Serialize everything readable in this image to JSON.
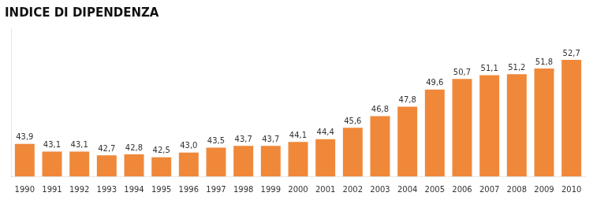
{
  "chart_data": {
    "type": "bar",
    "title": "INDICE DI DIPENDENZA",
    "categories": [
      1990,
      1991,
      1992,
      1993,
      1994,
      1995,
      1996,
      1997,
      1998,
      1999,
      2000,
      2001,
      2002,
      2003,
      2004,
      2005,
      2006,
      2007,
      2008,
      2009,
      2010
    ],
    "values": [
      43.9,
      43.1,
      43.1,
      42.7,
      42.8,
      42.5,
      43.0,
      43.5,
      43.7,
      43.7,
      44.1,
      44.4,
      45.6,
      46.8,
      47.8,
      49.6,
      50.7,
      51.1,
      51.2,
      51.8,
      52.7
    ],
    "value_labels": [
      "43,9",
      "43,1",
      "43,1",
      "42,7",
      "42,8",
      "42,5",
      "43,0",
      "43,5",
      "43,7",
      "43,7",
      "44,1",
      "44,4",
      "45,6",
      "46,8",
      "47,8",
      "49,6",
      "50,7",
      "51,1",
      "51,2",
      "51,8",
      "52,7"
    ],
    "color": "#F0883A",
    "ylim": [
      40.5,
      56.0
    ],
    "grid": false,
    "data_labels": true,
    "tick_labels": "x"
  }
}
